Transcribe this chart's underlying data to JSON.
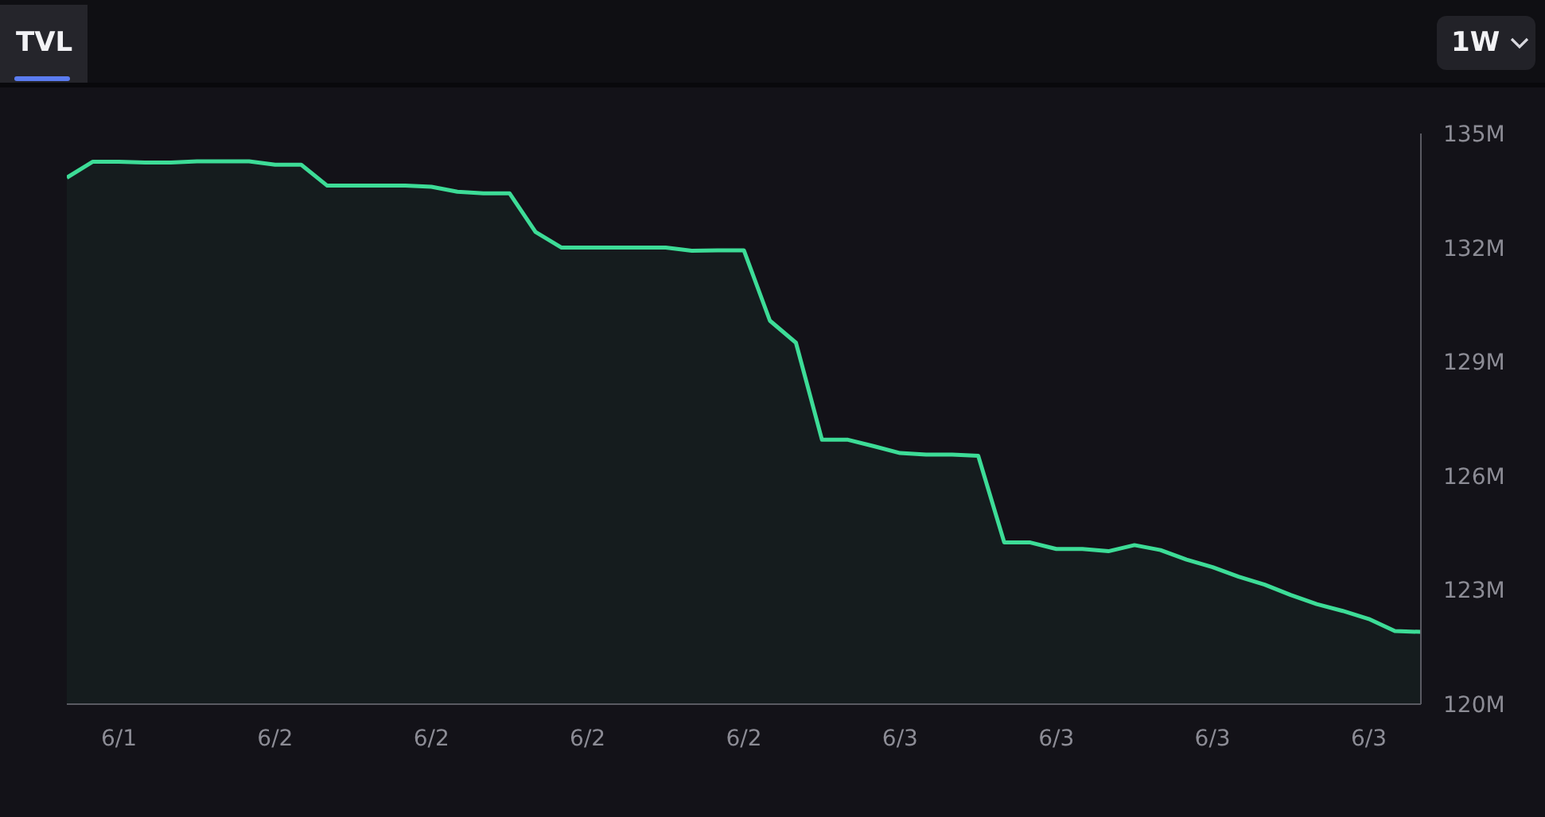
{
  "chart_data": {
    "type": "area",
    "title": "TVL",
    "annotations": [
      "1W"
    ],
    "categories": [
      null,
      null,
      "6/1",
      null,
      null,
      null,
      null,
      null,
      "6/2",
      null,
      null,
      null,
      null,
      null,
      "6/2",
      null,
      null,
      null,
      null,
      null,
      "6/2",
      null,
      null,
      null,
      null,
      null,
      "6/2",
      null,
      null,
      null,
      null,
      null,
      "6/3",
      null,
      null,
      null,
      null,
      null,
      "6/3",
      null,
      null,
      null,
      null,
      null,
      "6/3",
      null,
      null,
      null,
      null,
      null,
      "6/3",
      null,
      null
    ],
    "series": [
      {
        "color": "#3ddc97",
        "values": [
          133.84,
          134.26,
          134.26,
          134.24,
          134.24,
          134.27,
          134.27,
          134.27,
          134.18,
          134.18,
          133.63,
          133.63,
          133.63,
          133.63,
          133.6,
          133.47,
          133.43,
          133.43,
          132.41,
          132.0,
          132.0,
          132.0,
          132.0,
          132.0,
          131.92,
          131.93,
          131.93,
          130.08,
          129.5,
          126.95,
          126.95,
          126.78,
          126.6,
          126.56,
          126.56,
          126.53,
          124.25,
          124.25,
          124.08,
          124.08,
          124.02,
          124.18,
          124.05,
          123.8,
          123.6,
          123.35,
          123.14,
          122.87,
          122.63,
          122.45,
          122.24,
          121.92,
          121.9
        ]
      }
    ],
    "ylim": [
      120,
      135
    ],
    "yticks": [
      {
        "value": 120,
        "label": "120M"
      },
      {
        "value": 123,
        "label": "123M"
      },
      {
        "value": 126,
        "label": "126M"
      },
      {
        "value": 129,
        "label": "129M"
      },
      {
        "value": 132,
        "label": "132M"
      },
      {
        "value": 135,
        "label": "135M"
      }
    ],
    "grid": false,
    "legend": false
  }
}
